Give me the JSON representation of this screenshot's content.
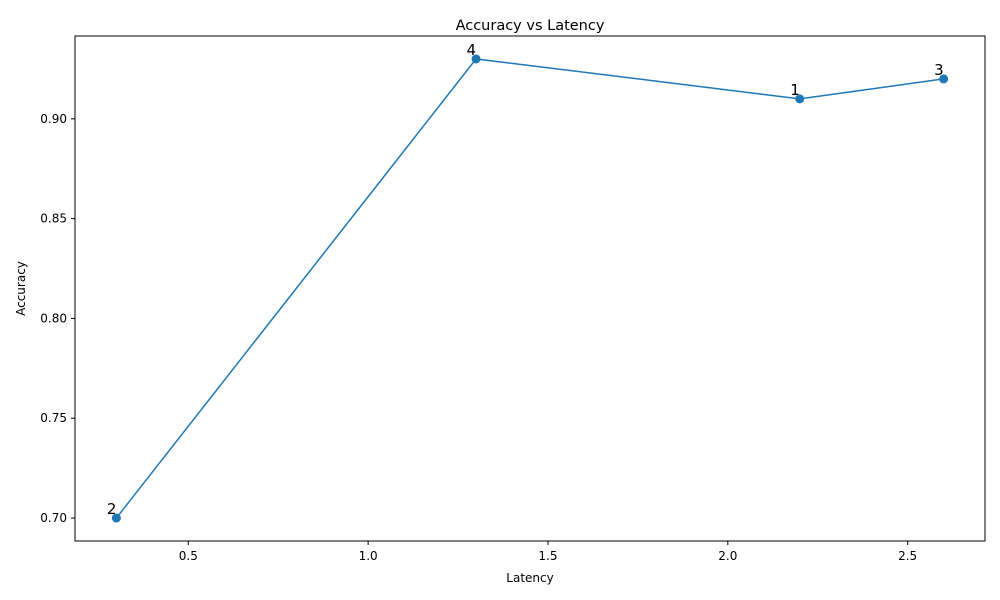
{
  "chart_data": {
    "type": "line",
    "title": "Accuracy vs Latency",
    "xlabel": "Latency",
    "ylabel": "Accuracy",
    "xlim": [
      0.185,
      2.715
    ],
    "ylim": [
      0.6885,
      0.9415
    ],
    "xticks": [
      0.5,
      1.0,
      1.5,
      2.0,
      2.5
    ],
    "xtick_labels": [
      "0.5",
      "1.0",
      "1.5",
      "2.0",
      "2.5"
    ],
    "yticks": [
      0.7,
      0.75,
      0.8,
      0.85,
      0.9
    ],
    "ytick_labels": [
      "0.70",
      "0.75",
      "0.80",
      "0.85",
      "0.90"
    ],
    "grid": false,
    "series": [
      {
        "color": "#1f77b4",
        "marker": "circle",
        "points": [
          {
            "x": 0.3,
            "y": 0.7,
            "label": "2"
          },
          {
            "x": 1.3,
            "y": 0.93,
            "label": "4"
          },
          {
            "x": 2.2,
            "y": 0.91,
            "label": "1"
          },
          {
            "x": 2.6,
            "y": 0.92,
            "label": "3"
          }
        ]
      }
    ]
  }
}
